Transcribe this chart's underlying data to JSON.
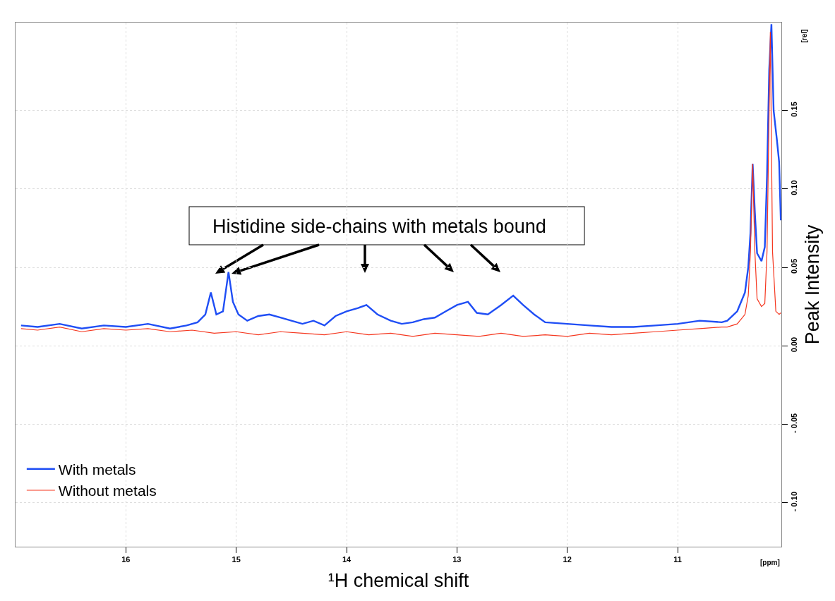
{
  "chart_data": {
    "type": "line",
    "xlabel": "¹H chemical shift",
    "ylabel": "Peak Intensity",
    "annotations": [
      "Histidine side-chains with metals bound",
      "[ppm]",
      "[rel]"
    ],
    "xlim": [
      17.0,
      10.06
    ],
    "xticks": [
      16,
      15,
      14,
      13,
      12,
      11
    ],
    "ylim": [
      -0.128,
      0.206
    ],
    "yticks": [
      {
        "value": -0.1,
        "label": "- 0.10"
      },
      {
        "value": -0.05,
        "label": "- 0.05"
      },
      {
        "value": 0,
        "label": "0.00"
      },
      {
        "value": 0.05,
        "label": "0.05"
      },
      {
        "value": 0.1,
        "label": "0.10"
      },
      {
        "value": 0.15,
        "label": "0.15"
      }
    ],
    "grid": true,
    "legend": "bottom left",
    "marker": "none",
    "line_style": "solid",
    "series": [
      {
        "name": "With metals",
        "color": "#1f4ef5",
        "x": [
          16.95,
          16.8,
          16.6,
          16.4,
          16.2,
          16.0,
          15.8,
          15.6,
          15.45,
          15.35,
          15.28,
          15.23,
          15.18,
          15.12,
          15.07,
          15.03,
          14.98,
          14.9,
          14.8,
          14.7,
          14.6,
          14.5,
          14.4,
          14.3,
          14.2,
          14.1,
          14.0,
          13.9,
          13.82,
          13.72,
          13.6,
          13.5,
          13.4,
          13.3,
          13.2,
          13.1,
          13.0,
          12.9,
          12.82,
          12.72,
          12.6,
          12.49,
          12.4,
          12.3,
          12.2,
          12.0,
          11.8,
          11.6,
          11.4,
          11.2,
          11.0,
          10.8,
          10.6,
          10.55,
          10.46,
          10.39,
          10.36,
          10.34,
          10.32,
          10.3,
          10.28,
          10.24,
          10.21,
          10.19,
          10.17,
          10.15,
          10.13,
          10.1,
          10.08,
          10.065
        ],
        "values": [
          0.013,
          0.012,
          0.014,
          0.011,
          0.013,
          0.012,
          0.014,
          0.011,
          0.013,
          0.015,
          0.02,
          0.034,
          0.02,
          0.022,
          0.047,
          0.028,
          0.02,
          0.016,
          0.019,
          0.02,
          0.018,
          0.016,
          0.014,
          0.016,
          0.013,
          0.019,
          0.022,
          0.024,
          0.026,
          0.02,
          0.016,
          0.014,
          0.015,
          0.017,
          0.018,
          0.022,
          0.026,
          0.028,
          0.021,
          0.02,
          0.026,
          0.032,
          0.026,
          0.02,
          0.015,
          0.014,
          0.013,
          0.012,
          0.012,
          0.013,
          0.014,
          0.016,
          0.015,
          0.016,
          0.022,
          0.034,
          0.05,
          0.072,
          0.116,
          0.085,
          0.059,
          0.054,
          0.063,
          0.108,
          0.176,
          0.205,
          0.15,
          0.131,
          0.117,
          0.08
        ]
      },
      {
        "name": "Without metals",
        "color": "#f5371f",
        "x": [
          16.95,
          16.8,
          16.6,
          16.4,
          16.2,
          16.0,
          15.8,
          15.6,
          15.4,
          15.2,
          15.0,
          14.8,
          14.6,
          14.4,
          14.2,
          14.0,
          13.8,
          13.6,
          13.4,
          13.2,
          13.0,
          12.8,
          12.6,
          12.4,
          12.2,
          12.0,
          11.8,
          11.6,
          11.4,
          11.2,
          11.0,
          10.8,
          10.6,
          10.55,
          10.46,
          10.39,
          10.36,
          10.34,
          10.32,
          10.3,
          10.28,
          10.24,
          10.21,
          10.19,
          10.16,
          10.14,
          10.11,
          10.08,
          10.065
        ],
        "values": [
          0.011,
          0.01,
          0.012,
          0.009,
          0.011,
          0.01,
          0.011,
          0.009,
          0.01,
          0.008,
          0.009,
          0.007,
          0.009,
          0.008,
          0.007,
          0.009,
          0.007,
          0.008,
          0.006,
          0.008,
          0.007,
          0.006,
          0.008,
          0.006,
          0.007,
          0.006,
          0.008,
          0.007,
          0.008,
          0.009,
          0.01,
          0.011,
          0.012,
          0.012,
          0.014,
          0.02,
          0.032,
          0.06,
          0.116,
          0.06,
          0.03,
          0.025,
          0.027,
          0.06,
          0.2,
          0.06,
          0.022,
          0.02,
          0.021
        ]
      }
    ]
  }
}
